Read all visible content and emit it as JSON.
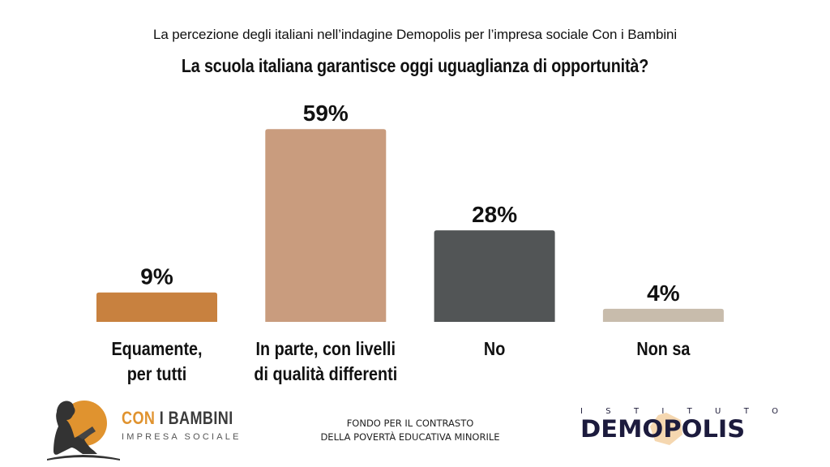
{
  "header": {
    "subtitle": "La percezione degli italiani nell’indagine Demopolis per l’impresa sociale Con i Bambini",
    "title": "La scuola italiana garantisce oggi uguaglianza di opportunità?"
  },
  "chart_data": {
    "type": "bar",
    "title": "La scuola italiana garantisce oggi uguaglianza di opportunità?",
    "subtitle": "La percezione degli italiani nell’indagine Demopolis per l’impresa sociale Con i Bambini",
    "categories": [
      [
        "Equamente,",
        "per tutti"
      ],
      [
        "In parte, con livelli",
        "di qualità differenti"
      ],
      [
        "No"
      ],
      [
        "Non sa"
      ]
    ],
    "values": [
      9,
      59,
      28,
      4
    ],
    "value_labels": [
      "9%",
      "59%",
      "28%",
      "4%"
    ],
    "colors": [
      "#c8813f",
      "#c99c7e",
      "#525556",
      "#c8bcac"
    ],
    "xlabel": "",
    "ylabel": "",
    "unit": "%",
    "ylim": [
      0,
      100
    ],
    "grid": false,
    "legend": "none"
  },
  "footer": {
    "left_logo": {
      "name_part1": "CON",
      "name_part2": "I BAMBINI",
      "tagline": "IMPRESA SOCIALE",
      "accent_color": "#e0932f",
      "icon": "child-reading-book-icon"
    },
    "center_text": [
      "FONDO PER IL CONTRASTO",
      "DELLA POVERTÀ EDUCATIVA MINORILE"
    ],
    "right_logo": {
      "top_letters": [
        "I",
        "S",
        "T",
        "I",
        "T",
        "U",
        "T",
        "O"
      ],
      "name": "DEMOPOLIS",
      "color": "#1c1b3d",
      "accent_color": "#e8a750"
    }
  }
}
